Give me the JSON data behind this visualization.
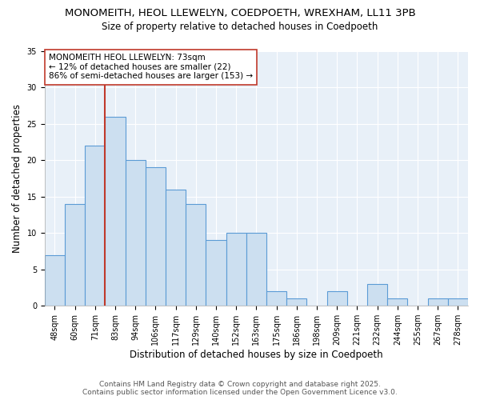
{
  "title": "MONOMEITH, HEOL LLEWELYN, COEDPOETH, WREXHAM, LL11 3PB",
  "subtitle": "Size of property relative to detached houses in Coedpoeth",
  "xlabel": "Distribution of detached houses by size in Coedpoeth",
  "ylabel": "Number of detached properties",
  "categories": [
    "48sqm",
    "60sqm",
    "71sqm",
    "83sqm",
    "94sqm",
    "106sqm",
    "117sqm",
    "129sqm",
    "140sqm",
    "152sqm",
    "163sqm",
    "175sqm",
    "186sqm",
    "198sqm",
    "209sqm",
    "221sqm",
    "232sqm",
    "244sqm",
    "255sqm",
    "267sqm",
    "278sqm"
  ],
  "values": [
    7,
    14,
    22,
    26,
    20,
    19,
    16,
    14,
    9,
    10,
    10,
    2,
    1,
    0,
    2,
    0,
    3,
    1,
    0,
    1,
    1
  ],
  "bar_color": "#ccdff0",
  "bar_edge_color": "#5b9bd5",
  "vline_x_index": 2,
  "vline_color": "#c0392b",
  "annotation_text": "MONOMEITH HEOL LLEWELYN: 73sqm\n← 12% of detached houses are smaller (22)\n86% of semi-detached houses are larger (153) →",
  "annotation_box_color": "#ffffff",
  "annotation_box_edge": "#c0392b",
  "ylim": [
    0,
    35
  ],
  "yticks": [
    0,
    5,
    10,
    15,
    20,
    25,
    30,
    35
  ],
  "footer_line1": "Contains HM Land Registry data © Crown copyright and database right 2025.",
  "footer_line2": "Contains public sector information licensed under the Open Government Licence v3.0.",
  "background_color": "#ffffff",
  "plot_bg_color": "#e8f0f8",
  "grid_color": "#ffffff",
  "title_fontsize": 9.5,
  "subtitle_fontsize": 8.5,
  "axis_label_fontsize": 8.5,
  "tick_fontsize": 7,
  "annotation_fontsize": 7.5,
  "footer_fontsize": 6.5
}
